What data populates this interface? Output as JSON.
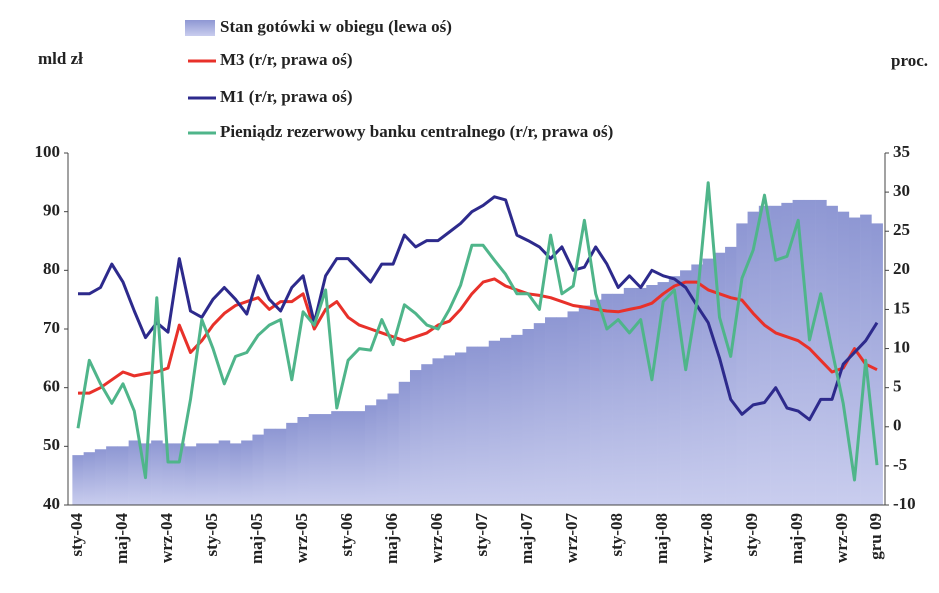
{
  "chart_data": {
    "type": "combo",
    "y_axis_label": "mld zł",
    "y2_axis_label": "proc.",
    "categories": [
      "sty-04",
      null,
      null,
      null,
      "maj-04",
      null,
      null,
      null,
      "wrz-04",
      null,
      null,
      null,
      "sty-05",
      null,
      null,
      null,
      "maj-05",
      null,
      null,
      null,
      "wrz-05",
      null,
      null,
      null,
      "sty-06",
      null,
      null,
      null,
      "maj-06",
      null,
      null,
      null,
      "wrz-06",
      null,
      null,
      null,
      "sty-07",
      null,
      null,
      null,
      "maj-07",
      null,
      null,
      null,
      "wrz-07",
      null,
      null,
      null,
      "sty-08",
      null,
      null,
      null,
      "maj-08",
      null,
      null,
      null,
      "wrz-08",
      null,
      null,
      null,
      "sty-09",
      null,
      null,
      null,
      "maj-09",
      null,
      null,
      null,
      "wrz-09",
      null,
      null,
      "gru 09"
    ],
    "ylim": [
      40,
      100
    ],
    "yticks": [
      40,
      50,
      60,
      70,
      80,
      90,
      100
    ],
    "y2lim": [
      -10,
      35
    ],
    "y2ticks": [
      -10,
      -5,
      0,
      5,
      10,
      15,
      20,
      25,
      30,
      35
    ],
    "grid": false,
    "series": [
      {
        "name": "Stan gotówki w obiegu (lewa oś)",
        "type": "bar",
        "axis": "y",
        "color": "#9aa3d9",
        "values": [
          48.5,
          49,
          49.5,
          50,
          50,
          51,
          50.5,
          51,
          50.5,
          50.5,
          50,
          50.5,
          50.5,
          51,
          50.5,
          51,
          52,
          53,
          53,
          54,
          55,
          55.5,
          55.5,
          56,
          56,
          56,
          57,
          58,
          59,
          61,
          63,
          64,
          65,
          65.5,
          66,
          67,
          67,
          68,
          68.5,
          69,
          70,
          71,
          72,
          72,
          73,
          74,
          75,
          76,
          76,
          77,
          77,
          77.5,
          78,
          79,
          80,
          81,
          82,
          83,
          84,
          88,
          90,
          91,
          91,
          91.5,
          92,
          92,
          92,
          91,
          90,
          89,
          89.5,
          88
        ]
      },
      {
        "name": "M3 (r/r, prawa oś)",
        "type": "line",
        "axis": "y2",
        "color": "#e8312a",
        "values": [
          4.3,
          4.3,
          5,
          6,
          7,
          6.5,
          6.8,
          7,
          7.5,
          13,
          9.5,
          11,
          13,
          14.5,
          15.5,
          16,
          16.5,
          15,
          16,
          16,
          17,
          12.5,
          15,
          16,
          14,
          13,
          12.5,
          12,
          11.5,
          11,
          11.5,
          12,
          13,
          13.5,
          15,
          17,
          18.5,
          18.9,
          18,
          17.5,
          17,
          16.8,
          16.5,
          16,
          15.5,
          15.3,
          15,
          14.8,
          14.7,
          15,
          15.3,
          15.8,
          17,
          18,
          18.5,
          18.5,
          17.5,
          17,
          16.5,
          16.2,
          14.5,
          13,
          12,
          11.5,
          11,
          10,
          8.5,
          7,
          7.5,
          10,
          8,
          7.3
        ]
      },
      {
        "name": "M1 (r/r, prawa oś)",
        "type": "line",
        "axis": "y2",
        "color": "#2d2a8c",
        "values": [
          17,
          17,
          17.8,
          20.8,
          18.5,
          14.8,
          11.4,
          13.3,
          12.1,
          21.5,
          14.8,
          14,
          16.3,
          17.8,
          16.3,
          14.4,
          19.3,
          16.3,
          14.8,
          17.8,
          19.3,
          13.3,
          19.3,
          21.5,
          21.5,
          20,
          18.5,
          20.8,
          20.8,
          24.5,
          23,
          23.8,
          23.8,
          24.9,
          26,
          27.5,
          28.3,
          29.4,
          29,
          24.5,
          23.8,
          23,
          21.5,
          23,
          20,
          20.4,
          23,
          20.8,
          17.8,
          19.3,
          17.8,
          20,
          19.3,
          18.9,
          17.8,
          15.5,
          13.3,
          8.8,
          3.5,
          1.6,
          2.8,
          3.1,
          5,
          2.4,
          2,
          0.9,
          3.5,
          3.5,
          8,
          9.5,
          11,
          13.3
        ]
      },
      {
        "name": "Pieniądz rezerwowy banku centralnego (r/r, prawa oś)",
        "type": "line",
        "axis": "y2",
        "color": "#4fb58a",
        "values": [
          -0.2,
          8.5,
          5.5,
          3,
          5.5,
          2,
          -6.5,
          16.5,
          -4.5,
          -4.5,
          3.5,
          13.7,
          10,
          5.5,
          9,
          9.5,
          11.7,
          13,
          13.7,
          6,
          14.7,
          13,
          17.5,
          2.4,
          8.5,
          10,
          9.8,
          13.7,
          10.5,
          15.6,
          14.5,
          13,
          12.5,
          15,
          18.1,
          23.2,
          23.2,
          21.3,
          19.5,
          17,
          17,
          15,
          24.5,
          17,
          18,
          26.4,
          17,
          12.5,
          13.7,
          12,
          13.7,
          6,
          16,
          17.5,
          7.3,
          16,
          31.2,
          14,
          9,
          19,
          22.6,
          29.6,
          21.3,
          21.8,
          26.4,
          11.1,
          17,
          9.8,
          3,
          -6.8,
          8.5,
          -4.9
        ]
      }
    ]
  }
}
